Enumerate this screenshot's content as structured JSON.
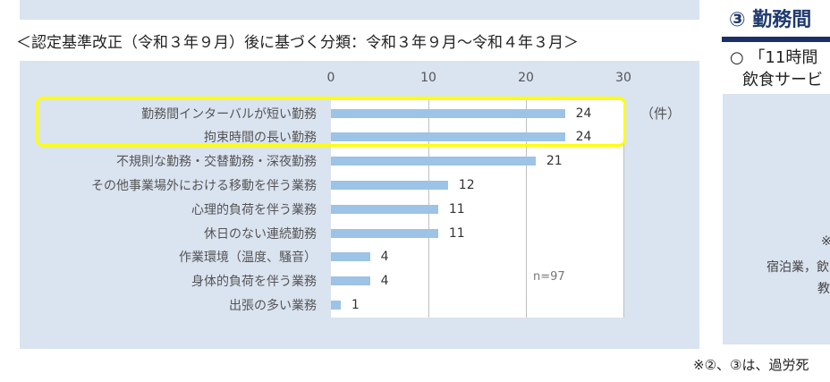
{
  "left_panel": {
    "title": "＜認定基準改正（令和３年９月）後に基づく分類：令和３年９月～令和４年３月＞"
  },
  "chart_data": {
    "type": "bar",
    "orientation": "horizontal",
    "categories": [
      "勤務間インターバルが短い勤務",
      "拘束時間の長い勤務",
      "不規則な勤務・交替勤務・深夜勤務",
      "その他事業場外における移動を伴う業務",
      "心理的負荷を伴う業務",
      "休日のない連続勤務",
      "作業環境（温度、騒音）",
      "身体的負荷を伴う業務",
      "出張の多い業務"
    ],
    "values": [
      24,
      24,
      21,
      12,
      11,
      11,
      4,
      4,
      1
    ],
    "xlim": [
      0,
      30
    ],
    "xticks": [
      "0",
      "10",
      "20",
      "30"
    ],
    "unit": "（件）",
    "annotation": "n=97",
    "grid": true,
    "axis_position": "top",
    "highlighted_categories": [
      "勤務間インターバルが短い勤務",
      "拘束時間の長い勤務"
    ],
    "colors": {
      "bar": "#9dc3e6",
      "highlight": "#ffff00",
      "panel": "#dae3f0"
    }
  },
  "right_panel": {
    "title": "③ 勤務間",
    "line1": "○ 「11時間",
    "line2": "飲食サービ",
    "box_text1": "※",
    "box_text2": "宿泊業，飲",
    "box_text3": "教"
  },
  "footnote": "※②、③は、過労死"
}
